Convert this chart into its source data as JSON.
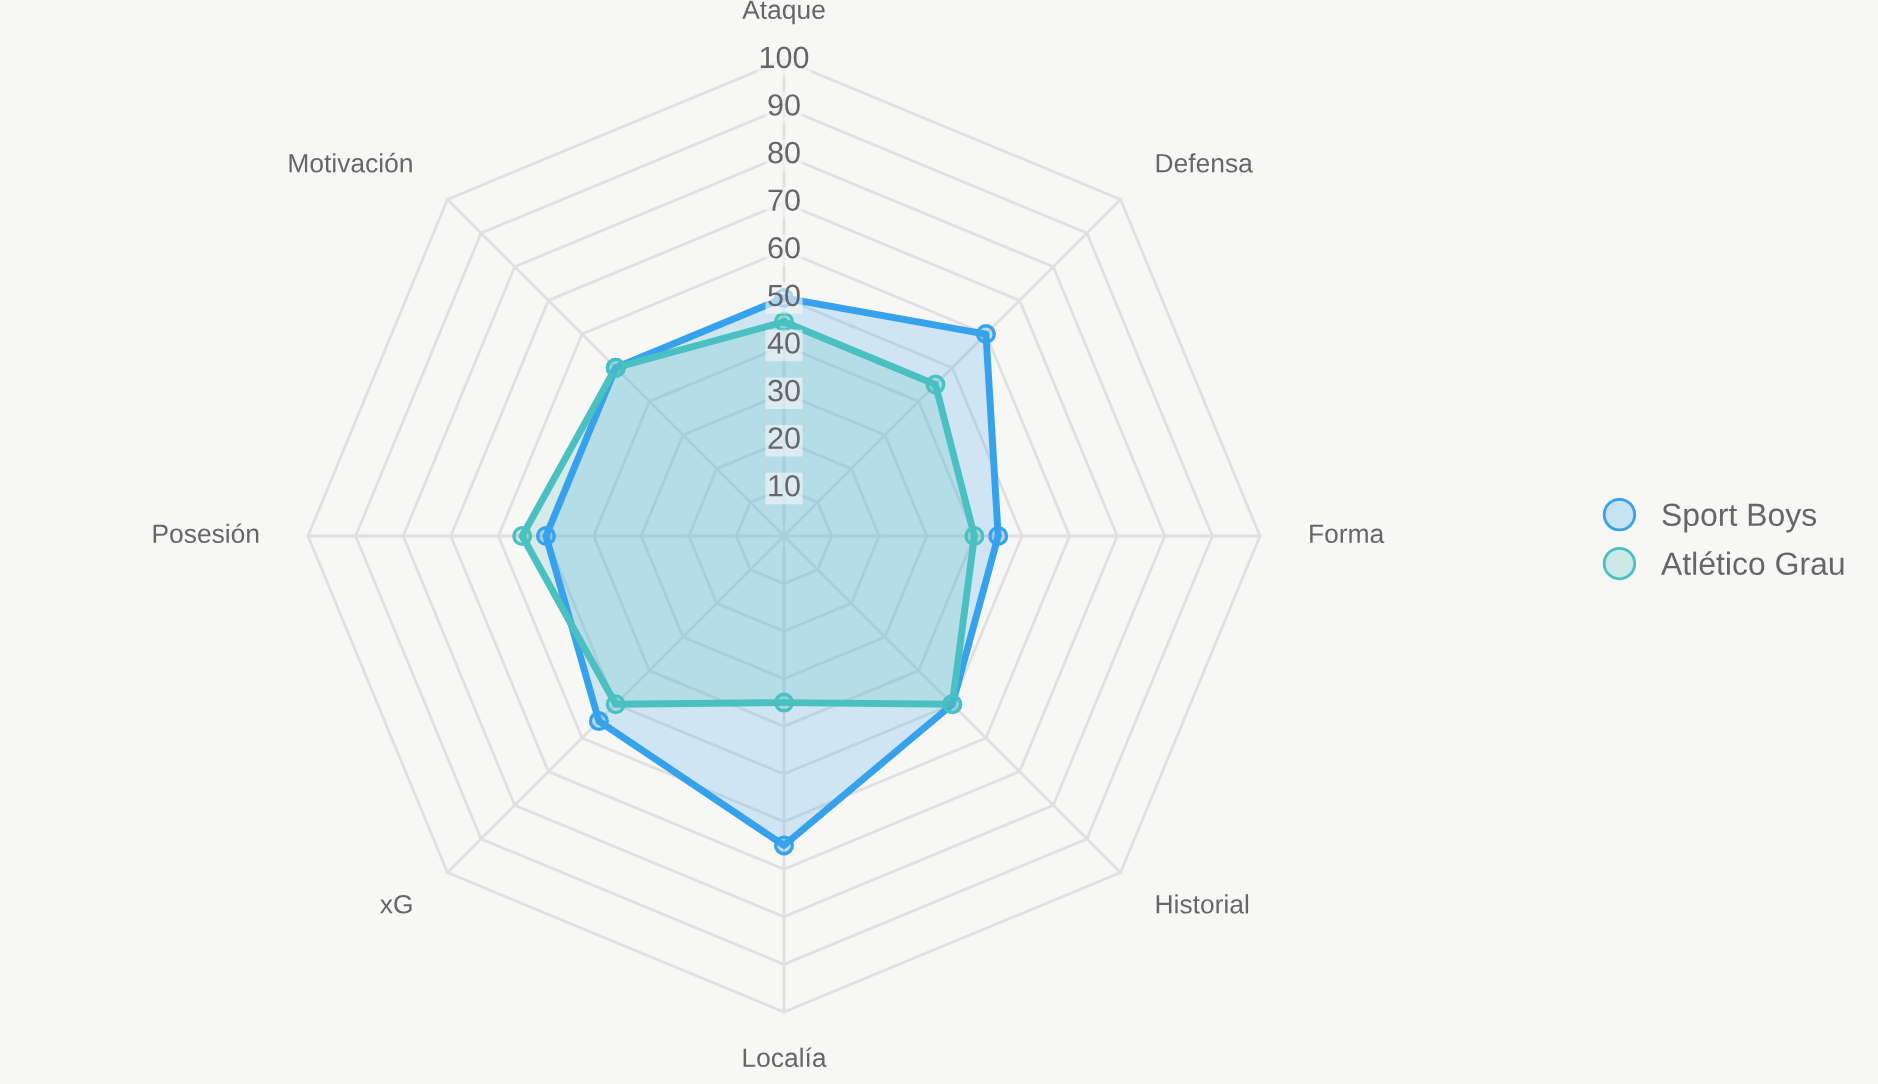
{
  "chart_data": {
    "type": "radar",
    "categories": [
      "Ataque",
      "Defensa",
      "Forma",
      "Historial",
      "Localía",
      "xG",
      "Posesión",
      "Motivación"
    ],
    "series": [
      {
        "name": "Sport Boys",
        "color": "#36a2eb",
        "values": [
          50,
          60,
          45,
          50,
          65,
          55,
          50,
          50
        ]
      },
      {
        "name": "Atlético Grau",
        "color": "#4bc0c0",
        "values": [
          45,
          45,
          40,
          50,
          35,
          50,
          55,
          50
        ]
      }
    ],
    "ylim": [
      0,
      100
    ],
    "yticks": [
      10,
      20,
      30,
      40,
      50,
      60,
      70,
      80,
      90,
      100
    ],
    "grid": true,
    "legend": "right",
    "marker": "circle",
    "line_style": "solid"
  }
}
